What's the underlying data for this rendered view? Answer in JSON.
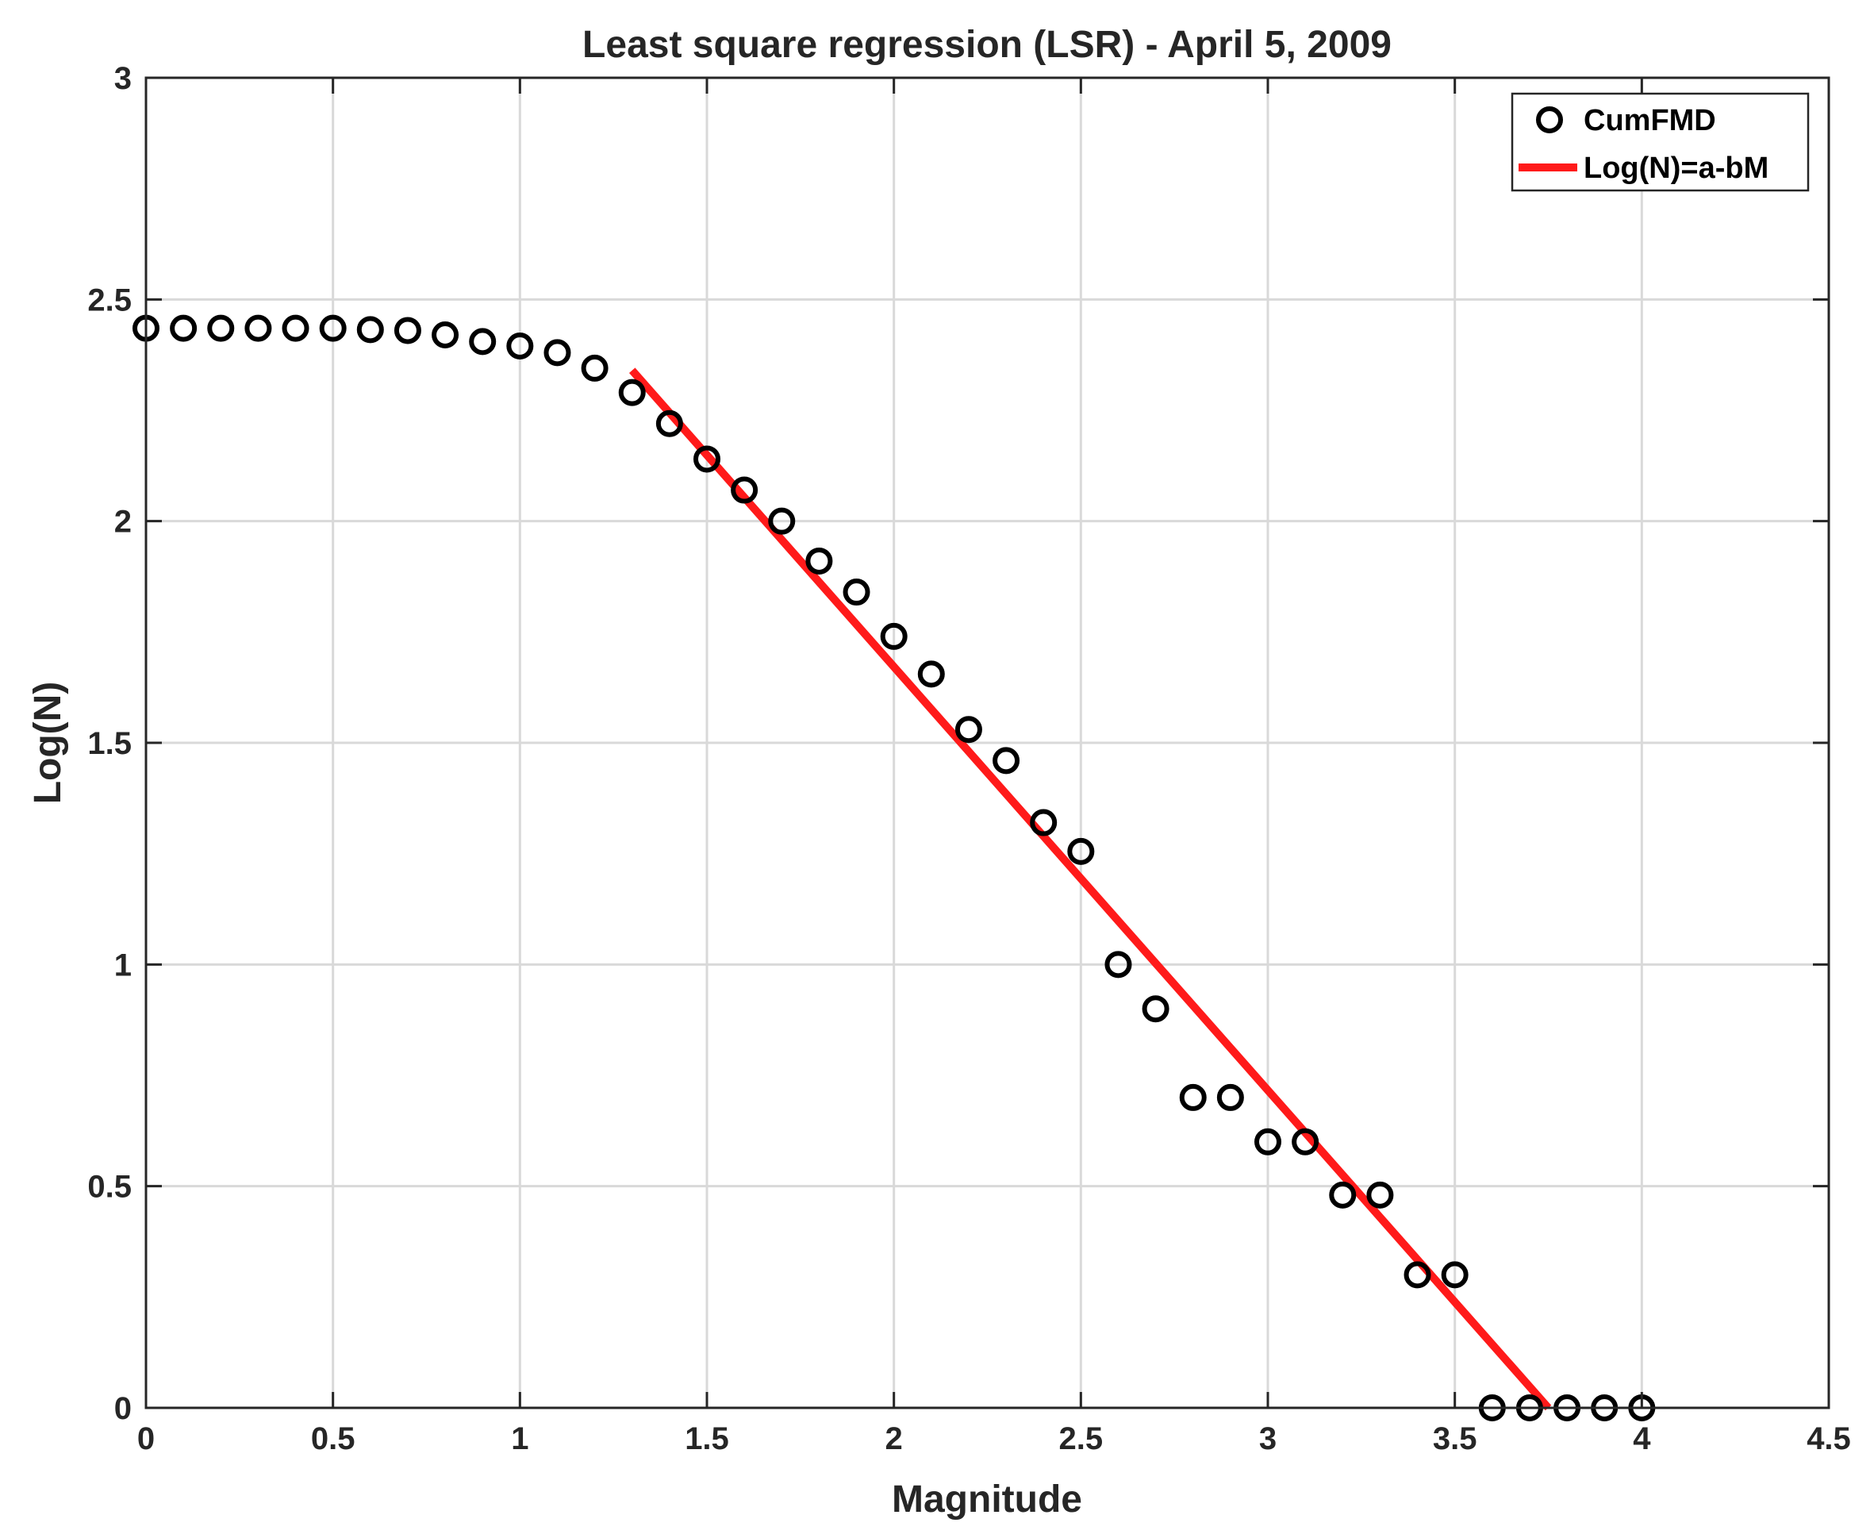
{
  "chart_data": {
    "type": "scatter",
    "title": "Least square regression (LSR) - April 5, 2009",
    "xlabel": "Magnitude",
    "ylabel": "Log(N)",
    "xlim": [
      0,
      4.5
    ],
    "ylim": [
      0,
      3
    ],
    "xticks": [
      0,
      0.5,
      1,
      1.5,
      2,
      2.5,
      3,
      3.5,
      4,
      4.5
    ],
    "xtick_labels": [
      "0",
      "0.5",
      "1",
      "1.5",
      "2",
      "2.5",
      "3",
      "3.5",
      "4",
      "4.5"
    ],
    "yticks": [
      0,
      0.5,
      1,
      1.5,
      2,
      2.5,
      3
    ],
    "ytick_labels": [
      "0",
      "0.5",
      "1",
      "1.5",
      "2",
      "2.5",
      "3"
    ],
    "grid": true,
    "legend_position": "top-right",
    "series": [
      {
        "name": "CumFMD",
        "kind": "markers",
        "marker": "open-circle",
        "color": "#000000",
        "x": [
          0,
          0.1,
          0.2,
          0.3,
          0.4,
          0.5,
          0.6,
          0.7,
          0.8,
          0.9,
          1.0,
          1.1,
          1.2,
          1.3,
          1.4,
          1.5,
          1.6,
          1.7,
          1.8,
          1.9,
          2.0,
          2.1,
          2.2,
          2.3,
          2.4,
          2.5,
          2.6,
          2.7,
          2.8,
          2.9,
          3.0,
          3.1,
          3.2,
          3.3,
          3.4,
          3.5,
          3.6,
          3.7,
          3.8,
          3.9,
          4.0
        ],
        "y": [
          2.435,
          2.435,
          2.435,
          2.435,
          2.435,
          2.435,
          2.432,
          2.43,
          2.42,
          2.405,
          2.395,
          2.38,
          2.345,
          2.29,
          2.22,
          2.14,
          2.07,
          2.0,
          1.91,
          1.84,
          1.74,
          1.655,
          1.53,
          1.46,
          1.32,
          1.255,
          1.0,
          0.9,
          0.7,
          0.7,
          0.6,
          0.6,
          0.48,
          0.48,
          0.3,
          0.3,
          0,
          0,
          0,
          0,
          0
        ]
      },
      {
        "name": "Log(N)=a-bM",
        "kind": "line",
        "color": "#ff1a1a",
        "x": [
          1.3,
          3.75
        ],
        "y": [
          2.34,
          0
        ]
      }
    ]
  }
}
